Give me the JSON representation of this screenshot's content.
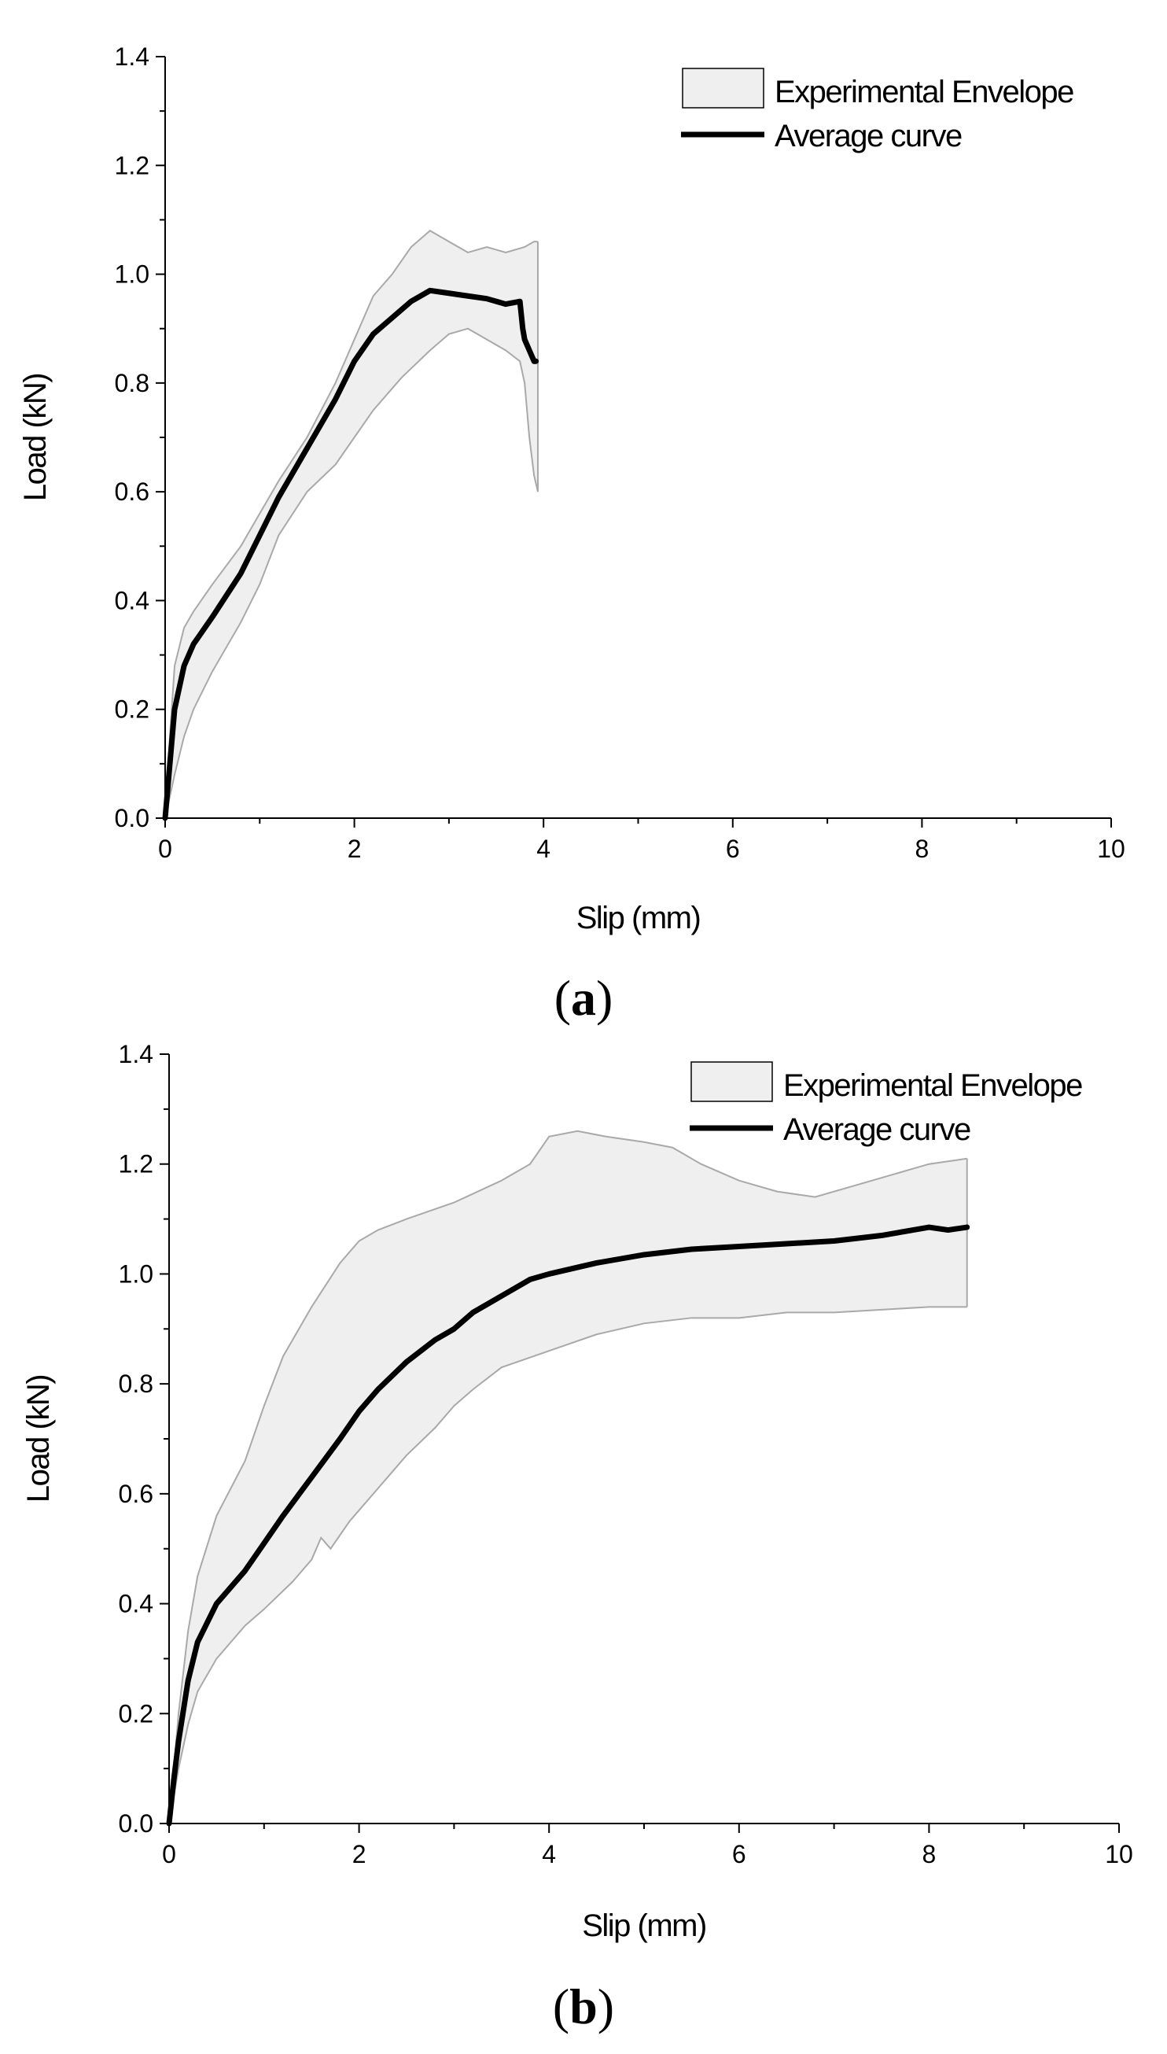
{
  "colors": {
    "envelope_fill": "#efefef",
    "envelope_edge": "#a9a9a9",
    "average": "#000000",
    "axis": "#000000"
  },
  "chart_data": [
    {
      "id": "a",
      "type": "line",
      "panel_label": "a",
      "xlabel": "Slip (mm)",
      "ylabel": "Load (kN)",
      "xlim": [
        0,
        10
      ],
      "ylim": [
        0,
        1.4
      ],
      "xticks": [
        "0",
        "2",
        "4",
        "6",
        "8",
        "10"
      ],
      "yticks": [
        "0.0",
        "0.2",
        "0.4",
        "0.6",
        "0.8",
        "1.0",
        "1.2",
        "1.4"
      ],
      "legend": {
        "position": "top-right",
        "entries": [
          "Experimental Envelope",
          "Average curve"
        ]
      },
      "series": [
        {
          "name": "Experimental Envelope",
          "kind": "band",
          "upper": [
            [
              0,
              0
            ],
            [
              0.05,
              0.15
            ],
            [
              0.1,
              0.28
            ],
            [
              0.2,
              0.35
            ],
            [
              0.3,
              0.38
            ],
            [
              0.5,
              0.43
            ],
            [
              0.8,
              0.5
            ],
            [
              1.0,
              0.56
            ],
            [
              1.2,
              0.62
            ],
            [
              1.5,
              0.7
            ],
            [
              1.8,
              0.8
            ],
            [
              2.0,
              0.88
            ],
            [
              2.2,
              0.96
            ],
            [
              2.4,
              1.0
            ],
            [
              2.6,
              1.05
            ],
            [
              2.8,
              1.08
            ],
            [
              3.0,
              1.06
            ],
            [
              3.2,
              1.04
            ],
            [
              3.4,
              1.05
            ],
            [
              3.6,
              1.04
            ],
            [
              3.8,
              1.05
            ],
            [
              3.9,
              1.06
            ],
            [
              3.94,
              1.06
            ]
          ],
          "lower": [
            [
              0,
              0
            ],
            [
              0.1,
              0.08
            ],
            [
              0.2,
              0.15
            ],
            [
              0.3,
              0.2
            ],
            [
              0.5,
              0.27
            ],
            [
              0.8,
              0.36
            ],
            [
              1.0,
              0.43
            ],
            [
              1.2,
              0.52
            ],
            [
              1.5,
              0.6
            ],
            [
              1.8,
              0.65
            ],
            [
              2.0,
              0.7
            ],
            [
              2.2,
              0.75
            ],
            [
              2.5,
              0.81
            ],
            [
              2.8,
              0.86
            ],
            [
              3.0,
              0.89
            ],
            [
              3.2,
              0.9
            ],
            [
              3.4,
              0.88
            ],
            [
              3.6,
              0.86
            ],
            [
              3.75,
              0.84
            ],
            [
              3.8,
              0.8
            ],
            [
              3.85,
              0.7
            ],
            [
              3.9,
              0.63
            ],
            [
              3.94,
              0.6
            ]
          ]
        },
        {
          "name": "Average curve",
          "kind": "line",
          "points": [
            [
              0,
              0
            ],
            [
              0.05,
              0.1
            ],
            [
              0.1,
              0.2
            ],
            [
              0.2,
              0.28
            ],
            [
              0.3,
              0.32
            ],
            [
              0.5,
              0.37
            ],
            [
              0.8,
              0.45
            ],
            [
              1.0,
              0.52
            ],
            [
              1.2,
              0.59
            ],
            [
              1.4,
              0.65
            ],
            [
              1.6,
              0.71
            ],
            [
              1.8,
              0.77
            ],
            [
              2.0,
              0.84
            ],
            [
              2.2,
              0.89
            ],
            [
              2.4,
              0.92
            ],
            [
              2.6,
              0.95
            ],
            [
              2.8,
              0.97
            ],
            [
              3.0,
              0.965
            ],
            [
              3.2,
              0.96
            ],
            [
              3.4,
              0.955
            ],
            [
              3.6,
              0.945
            ],
            [
              3.75,
              0.95
            ],
            [
              3.78,
              0.9
            ],
            [
              3.8,
              0.88
            ],
            [
              3.85,
              0.86
            ],
            [
              3.9,
              0.84
            ],
            [
              3.92,
              0.84
            ]
          ]
        }
      ]
    },
    {
      "id": "b",
      "type": "line",
      "panel_label": "b",
      "xlabel": "Slip (mm)",
      "ylabel": "Load (kN)",
      "xlim": [
        0,
        10
      ],
      "ylim": [
        0,
        1.4
      ],
      "xticks": [
        "0",
        "2",
        "4",
        "6",
        "8",
        "10"
      ],
      "yticks": [
        "0.0",
        "0.2",
        "0.4",
        "0.6",
        "0.8",
        "1.0",
        "1.2",
        "1.4"
      ],
      "legend": {
        "position": "top-right",
        "entries": [
          "Experimental Envelope",
          "Average curve"
        ]
      },
      "series": [
        {
          "name": "Experimental Envelope",
          "kind": "band",
          "upper": [
            [
              0,
              0
            ],
            [
              0.1,
              0.2
            ],
            [
              0.2,
              0.35
            ],
            [
              0.3,
              0.45
            ],
            [
              0.5,
              0.56
            ],
            [
              0.8,
              0.66
            ],
            [
              1.0,
              0.76
            ],
            [
              1.2,
              0.85
            ],
            [
              1.5,
              0.94
            ],
            [
              1.8,
              1.02
            ],
            [
              2.0,
              1.06
            ],
            [
              2.2,
              1.08
            ],
            [
              2.5,
              1.1
            ],
            [
              3.0,
              1.13
            ],
            [
              3.5,
              1.17
            ],
            [
              3.8,
              1.2
            ],
            [
              4.0,
              1.25
            ],
            [
              4.3,
              1.26
            ],
            [
              4.6,
              1.25
            ],
            [
              5.0,
              1.24
            ],
            [
              5.3,
              1.23
            ],
            [
              5.6,
              1.2
            ],
            [
              6.0,
              1.17
            ],
            [
              6.4,
              1.15
            ],
            [
              6.8,
              1.14
            ],
            [
              7.2,
              1.16
            ],
            [
              7.6,
              1.18
            ],
            [
              8.0,
              1.2
            ],
            [
              8.4,
              1.21
            ]
          ],
          "lower": [
            [
              0,
              0
            ],
            [
              0.1,
              0.1
            ],
            [
              0.2,
              0.18
            ],
            [
              0.3,
              0.24
            ],
            [
              0.5,
              0.3
            ],
            [
              0.8,
              0.36
            ],
            [
              1.0,
              0.39
            ],
            [
              1.3,
              0.44
            ],
            [
              1.5,
              0.48
            ],
            [
              1.6,
              0.52
            ],
            [
              1.7,
              0.5
            ],
            [
              1.9,
              0.55
            ],
            [
              2.2,
              0.61
            ],
            [
              2.5,
              0.67
            ],
            [
              2.8,
              0.72
            ],
            [
              3.0,
              0.76
            ],
            [
              3.2,
              0.79
            ],
            [
              3.5,
              0.83
            ],
            [
              4.0,
              0.86
            ],
            [
              4.5,
              0.89
            ],
            [
              5.0,
              0.91
            ],
            [
              5.5,
              0.92
            ],
            [
              6.0,
              0.92
            ],
            [
              6.5,
              0.93
            ],
            [
              7.0,
              0.93
            ],
            [
              7.5,
              0.935
            ],
            [
              8.0,
              0.94
            ],
            [
              8.4,
              0.94
            ]
          ]
        },
        {
          "name": "Average curve",
          "kind": "line",
          "points": [
            [
              0,
              0
            ],
            [
              0.05,
              0.08
            ],
            [
              0.1,
              0.15
            ],
            [
              0.2,
              0.26
            ],
            [
              0.3,
              0.33
            ],
            [
              0.5,
              0.4
            ],
            [
              0.8,
              0.46
            ],
            [
              1.0,
              0.51
            ],
            [
              1.2,
              0.56
            ],
            [
              1.5,
              0.63
            ],
            [
              1.8,
              0.7
            ],
            [
              2.0,
              0.75
            ],
            [
              2.2,
              0.79
            ],
            [
              2.5,
              0.84
            ],
            [
              2.8,
              0.88
            ],
            [
              3.0,
              0.9
            ],
            [
              3.2,
              0.93
            ],
            [
              3.5,
              0.96
            ],
            [
              3.8,
              0.99
            ],
            [
              4.0,
              1.0
            ],
            [
              4.5,
              1.02
            ],
            [
              5.0,
              1.035
            ],
            [
              5.5,
              1.045
            ],
            [
              6.0,
              1.05
            ],
            [
              6.5,
              1.055
            ],
            [
              7.0,
              1.06
            ],
            [
              7.5,
              1.07
            ],
            [
              8.0,
              1.085
            ],
            [
              8.2,
              1.08
            ],
            [
              8.4,
              1.085
            ]
          ]
        }
      ]
    }
  ]
}
